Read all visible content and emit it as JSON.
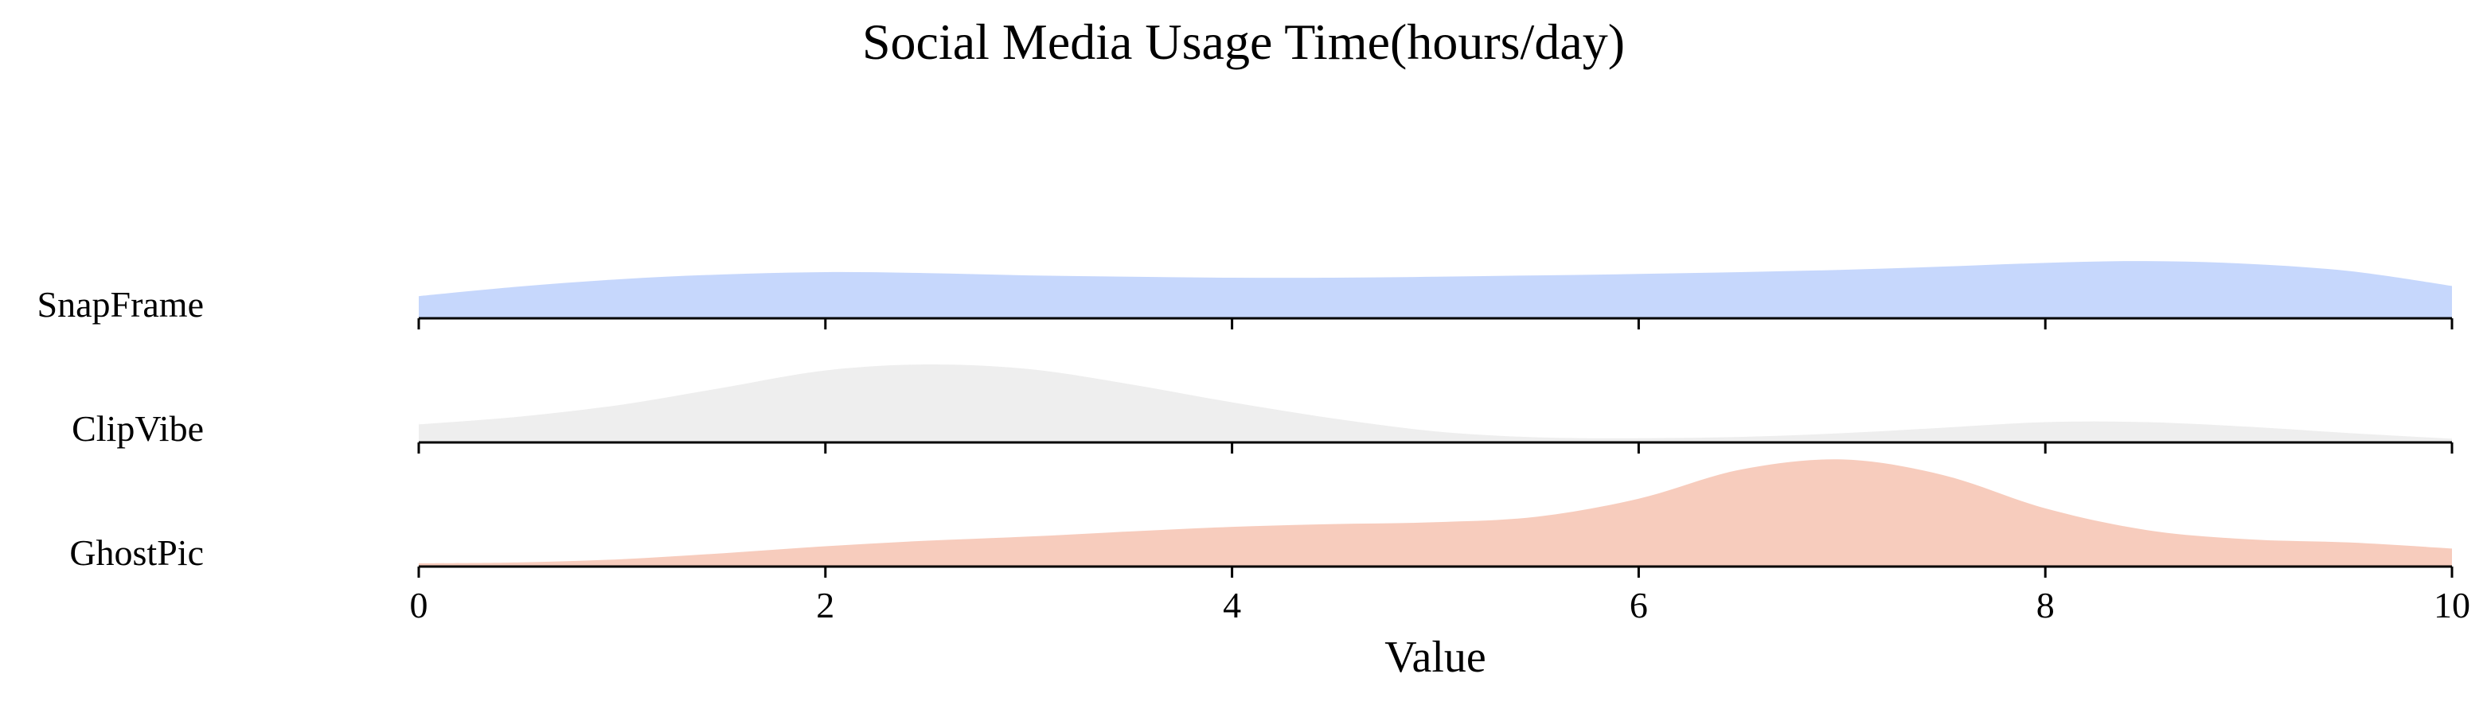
{
  "chart_data": {
    "type": "area",
    "title": "Social Media Usage Time(hours/day)",
    "xlabel": "Value",
    "ylabel": "",
    "xlim": [
      0,
      10
    ],
    "xticks": [
      0,
      2,
      4,
      6,
      8,
      10
    ],
    "grid": false,
    "legend": "none",
    "x": [
      0,
      0.5,
      1,
      1.5,
      2,
      2.5,
      3,
      3.5,
      4,
      4.5,
      5,
      5.5,
      6,
      6.5,
      7,
      7.5,
      8,
      8.5,
      9,
      9.5,
      10
    ],
    "series": [
      {
        "name": "SnapFrame",
        "color": "#bcd0fb",
        "values": [
          0.48,
          0.69,
          0.85,
          0.95,
          1.0,
          0.98,
          0.93,
          0.9,
          0.88,
          0.88,
          0.9,
          0.93,
          0.96,
          1.0,
          1.05,
          1.12,
          1.2,
          1.24,
          1.18,
          1.02,
          0.7
        ]
      },
      {
        "name": "ClipVibe",
        "color": "#ebebeb",
        "values": [
          0.45,
          0.62,
          0.88,
          1.25,
          1.62,
          1.75,
          1.65,
          1.32,
          0.93,
          0.58,
          0.3,
          0.17,
          0.15,
          0.18,
          0.26,
          0.38,
          0.5,
          0.5,
          0.4,
          0.26,
          0.14
        ]
      },
      {
        "name": "GhostPic",
        "color": "#f6c3b2",
        "values": [
          0.07,
          0.09,
          0.16,
          0.29,
          0.44,
          0.56,
          0.65,
          0.76,
          0.86,
          0.92,
          0.96,
          1.08,
          1.47,
          2.1,
          2.32,
          1.98,
          1.26,
          0.79,
          0.59,
          0.52,
          0.39
        ]
      }
    ],
    "highlight": {
      "series": "ClipVibe",
      "outline_color": "#ffffff"
    }
  }
}
